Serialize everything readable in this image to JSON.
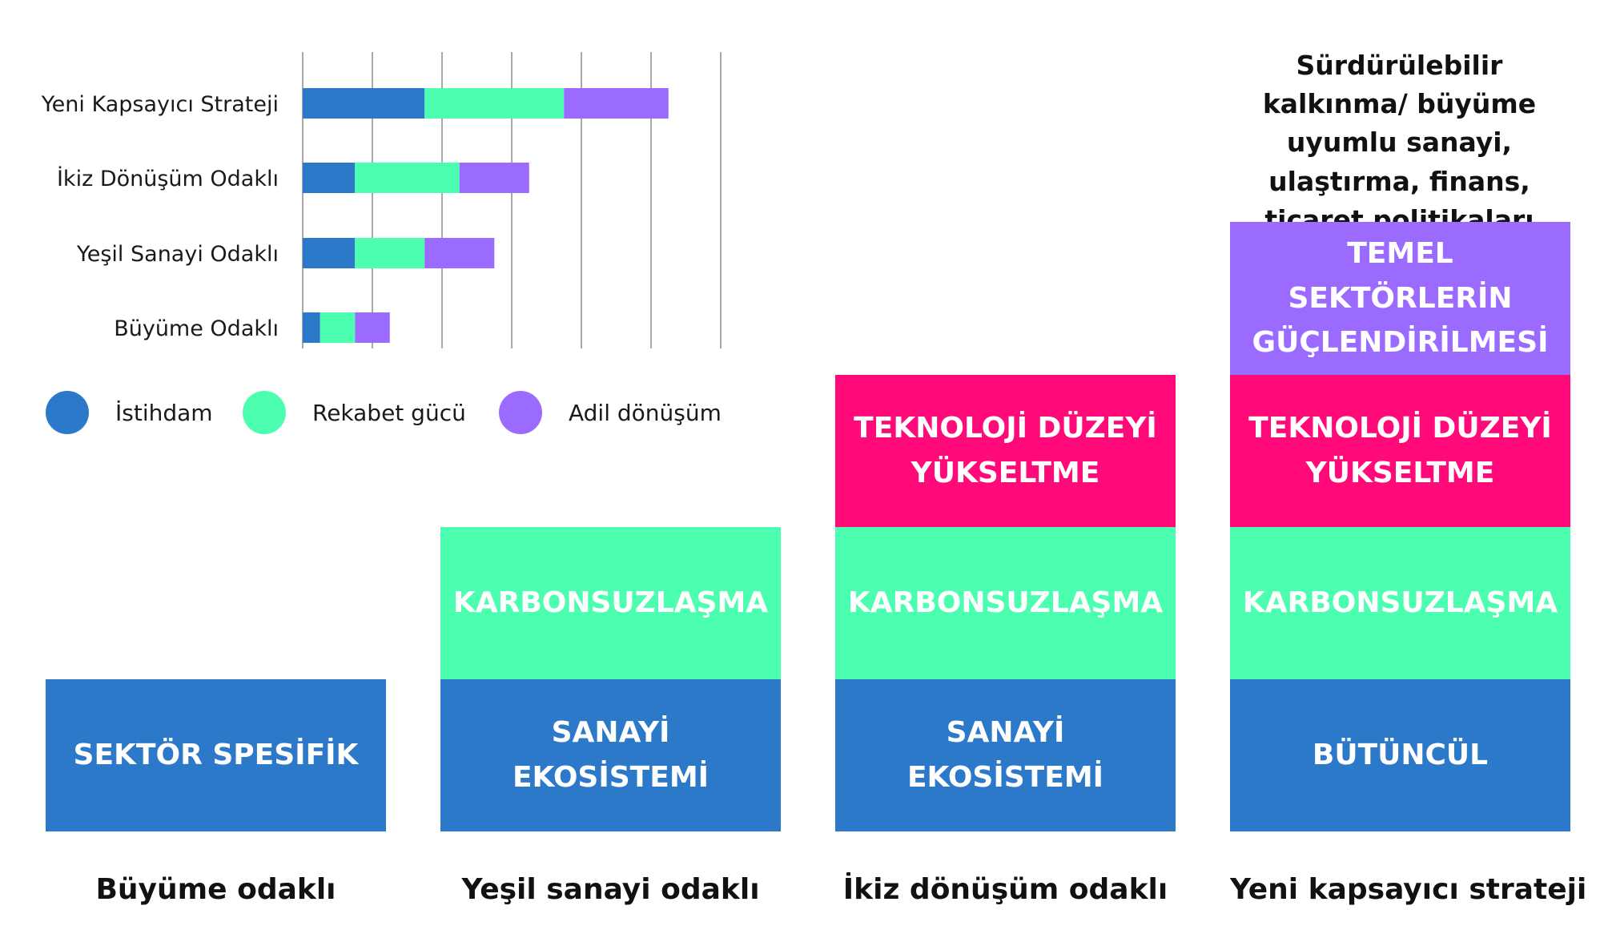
{
  "chart_data": {
    "type": "bar",
    "orientation": "horizontal",
    "stacked": true,
    "categories": [
      "Yeni Kapsayıcı Strateji",
      "İkiz Dönüşüm Odaklı",
      "Yeşil Sanayi Odaklı",
      "Büyüme Odaklı"
    ],
    "series": [
      {
        "name": "İstihdam",
        "color": "#2b79c8",
        "values": [
          1.75,
          0.75,
          0.75,
          0.25
        ]
      },
      {
        "name": "Rekabet gücü",
        "color": "#4cffb0",
        "values": [
          2.0,
          1.5,
          1.0,
          0.5
        ]
      },
      {
        "name": "Adil dönüşüm",
        "color": "#9b6bff",
        "values": [
          1.5,
          1.0,
          1.0,
          0.5
        ]
      }
    ],
    "xlim": [
      0,
      6
    ],
    "grid": true,
    "legend_position": "bottom"
  },
  "blocks": [
    {
      "column": 0,
      "label": "Büyüme odaklı",
      "layers": [
        {
          "text": "SEKTÖR SPESİFİK",
          "color": "#2b79c8"
        }
      ]
    },
    {
      "column": 1,
      "label": "Yeşil sanayi odaklı",
      "layers": [
        {
          "text": "SANAYİ EKOSİSTEMİ",
          "color": "#2b79c8"
        },
        {
          "text": "KARBONSUZLAŞMA",
          "color": "#4cffb0"
        }
      ]
    },
    {
      "column": 2,
      "label": "İkiz dönüşüm odaklı",
      "layers": [
        {
          "text": "SANAYİ EKOSİSTEMİ",
          "color": "#2b79c8"
        },
        {
          "text": "KARBONSUZLAŞMA",
          "color": "#4cffb0"
        },
        {
          "text": "TEKNOLOJİ DÜZEYİ YÜKSELTME",
          "color": "#ff0a78"
        }
      ]
    },
    {
      "column": 3,
      "label": "Yeni kapsayıcı strateji",
      "layers": [
        {
          "text": "BÜTÜNCÜL",
          "color": "#2b79c8"
        },
        {
          "text": "KARBONSUZLAŞMA",
          "color": "#4cffb0"
        },
        {
          "text": "TEKNOLOJİ DÜZEYİ YÜKSELTME",
          "color": "#ff0a78"
        },
        {
          "text": "TEMEL SEKTÖRLERİN GÜÇLENDİRİLMESİ",
          "color": "#9b6bff"
        }
      ]
    }
  ],
  "top_note": "Sürdürülebilir kalkınma/ büyüme uyumlu sanayi, ulaştırma, finans, ticaret politikaları bütünü"
}
